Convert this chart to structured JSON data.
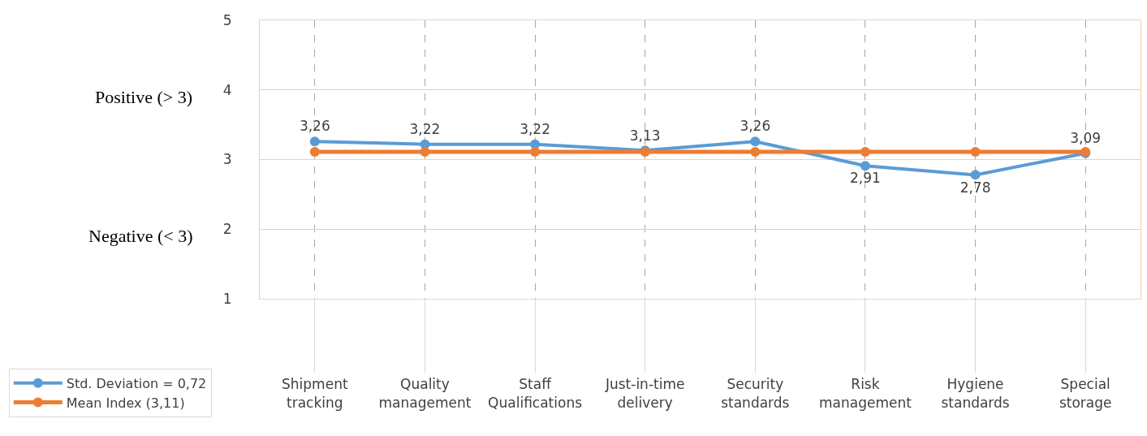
{
  "chart_data": {
    "type": "line",
    "categories": [
      "Shipment tracking",
      "Quality management",
      "Staff Qualifications",
      "Just-in-time delivery",
      "Security standards",
      "Risk management",
      "Hygiene standards",
      "Special storage"
    ],
    "series": [
      {
        "name": "Std. Deviation = 0,72",
        "color": "#5b9bd5",
        "values": [
          3.26,
          3.22,
          3.22,
          3.13,
          3.26,
          2.91,
          2.78,
          3.09
        ],
        "value_labels": [
          "3,26",
          "3,22",
          "3,22",
          "3,13",
          "3,26",
          "2,91",
          "2,78",
          "3,09"
        ]
      },
      {
        "name": "Mean Index (3,11)",
        "color": "#ed7d31",
        "values": [
          3.11,
          3.11,
          3.11,
          3.11,
          3.11,
          3.11,
          3.11,
          3.11
        ]
      }
    ],
    "ylim": [
      1,
      5
    ],
    "yticks": [
      1,
      2,
      3,
      4,
      5
    ],
    "annotations": [
      "Positive (> 3)",
      "Negative (< 3)"
    ],
    "grid": true,
    "legend": "bottom left",
    "marker": "circle",
    "line_style": "solid"
  }
}
